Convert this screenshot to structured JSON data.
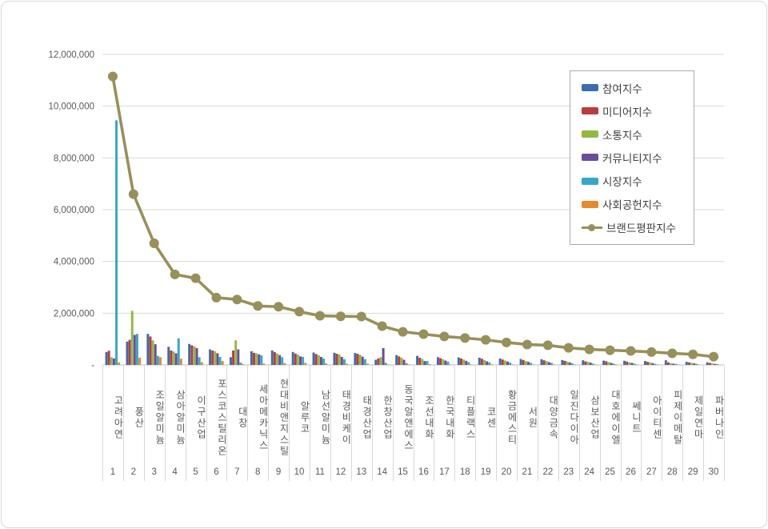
{
  "chart_data": {
    "type": "combo-bar-line",
    "title": "",
    "grid": true,
    "categories": [
      "고려아연",
      "풍산",
      "조일알미늄",
      "삼아알미늄",
      "이구산업",
      "포스코스틸리온",
      "대창",
      "세아메카닉스",
      "현대비앤지스틸",
      "알루코",
      "남선알미늄",
      "태경비케이",
      "태경산업",
      "한창산업",
      "동국알앤에스",
      "조선내화",
      "한국내화",
      "티플랙스",
      "코센",
      "황금에스티",
      "서원",
      "대양금속",
      "일진다이아",
      "삼보산업",
      "대호에이엘",
      "쎄니트",
      "아이티센",
      "피제이메탈",
      "제일연마",
      "파버나인"
    ],
    "ranks": [
      "1",
      "2",
      "3",
      "4",
      "5",
      "6",
      "7",
      "8",
      "9",
      "10",
      "11",
      "12",
      "13",
      "14",
      "15",
      "16",
      "17",
      "18",
      "19",
      "20",
      "21",
      "22",
      "23",
      "24",
      "25",
      "26",
      "27",
      "28",
      "29",
      "30"
    ],
    "bar_series": [
      {
        "name": "참여지수",
        "color": "#3D6BB3",
        "values": [
          500000,
          900000,
          1200000,
          700000,
          810000,
          600000,
          300000,
          530000,
          560000,
          500000,
          480000,
          470000,
          460000,
          200000,
          380000,
          350000,
          300000,
          290000,
          280000,
          250000,
          230000,
          220000,
          190000,
          180000,
          170000,
          160000,
          150000,
          180000,
          120000,
          100000
        ]
      },
      {
        "name": "미디어지수",
        "color": "#B83D3B",
        "values": [
          550000,
          970000,
          1100000,
          560000,
          760000,
          560000,
          560000,
          470000,
          500000,
          440000,
          420000,
          430000,
          430000,
          250000,
          330000,
          280000,
          260000,
          250000,
          240000,
          210000,
          190000,
          180000,
          160000,
          140000,
          140000,
          130000,
          120000,
          100000,
          100000,
          80000
        ]
      },
      {
        "name": "소통지수",
        "color": "#92B842",
        "values": [
          300000,
          2090000,
          950000,
          520000,
          720000,
          530000,
          950000,
          450000,
          440000,
          400000,
          380000,
          400000,
          390000,
          300000,
          280000,
          230000,
          220000,
          210000,
          190000,
          170000,
          150000,
          150000,
          130000,
          120000,
          110000,
          100000,
          100000,
          70000,
          80000,
          60000
        ]
      },
      {
        "name": "커뮤니티지수",
        "color": "#6A4C9C",
        "values": [
          250000,
          1160000,
          800000,
          450000,
          650000,
          450000,
          600000,
          410000,
          380000,
          330000,
          310000,
          310000,
          320000,
          650000,
          200000,
          150000,
          170000,
          160000,
          140000,
          130000,
          120000,
          110000,
          100000,
          90000,
          80000,
          80000,
          70000,
          50000,
          60000,
          40000
        ]
      },
      {
        "name": "시장지수",
        "color": "#35A8C8",
        "values": [
          9450000,
          1200000,
          350000,
          1030000,
          300000,
          310000,
          90000,
          370000,
          300000,
          310000,
          250000,
          220000,
          220000,
          80000,
          70000,
          150000,
          130000,
          110000,
          100000,
          90000,
          80000,
          80000,
          60000,
          50000,
          50000,
          50000,
          40000,
          40000,
          40000,
          30000
        ]
      },
      {
        "name": "사회공헌지수",
        "color": "#E8892D",
        "values": [
          100000,
          280000,
          300000,
          240000,
          110000,
          150000,
          30000,
          50000,
          70000,
          80000,
          60000,
          50000,
          50000,
          20000,
          20000,
          30000,
          20000,
          20000,
          20000,
          20000,
          20000,
          20000,
          20000,
          20000,
          20000,
          20000,
          20000,
          10000,
          10000,
          10000
        ]
      }
    ],
    "line_series": {
      "name": "브랜드평판지수",
      "color": "#98905A",
      "values": [
        11150000,
        6600000,
        4700000,
        3500000,
        3350000,
        2600000,
        2530000,
        2280000,
        2250000,
        2060000,
        1900000,
        1880000,
        1870000,
        1500000,
        1280000,
        1190000,
        1100000,
        1040000,
        970000,
        870000,
        790000,
        760000,
        660000,
        600000,
        570000,
        540000,
        500000,
        450000,
        410000,
        320000
      ]
    },
    "y_axis": {
      "min": 0,
      "max": 12000000,
      "step": 2000000,
      "tick_labels": [
        "-",
        "2,000,000",
        "4,000,000",
        "6,000,000",
        "8,000,000",
        "10,000,000",
        "12,000,000"
      ]
    },
    "legend": {
      "position": "top-right",
      "entries": [
        "참여지수",
        "미디어지수",
        "소통지수",
        "커뮤니티지수",
        "시장지수",
        "사회공헌지수",
        "브랜드평판지수"
      ]
    },
    "colors": {
      "gridline": "#d9d9d9",
      "axis_line": "#c0c0c0",
      "tick_text": "#595959",
      "legend_border": "#ababab"
    }
  }
}
